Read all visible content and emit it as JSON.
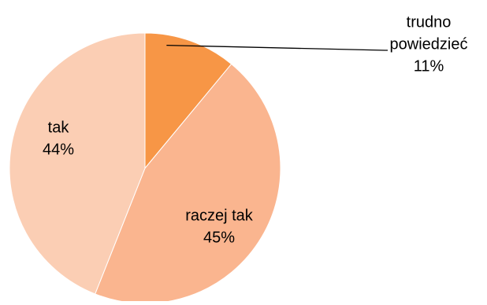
{
  "chart_data": {
    "type": "pie",
    "title": "",
    "slices": [
      {
        "label": "trudno powiedzieć",
        "label_lines": [
          "trudno",
          "powiedzieć"
        ],
        "value": 11,
        "value_text": "11%",
        "color": "#F79646"
      },
      {
        "label": "raczej tak",
        "label_lines": [
          "raczej tak"
        ],
        "value": 45,
        "value_text": "45%",
        "color": "#FAB58F"
      },
      {
        "label": "tak",
        "label_lines": [
          "tak"
        ],
        "value": 44,
        "value_text": "44%",
        "color": "#FBCEB4"
      }
    ],
    "start_angle_deg": 0,
    "direction": "clockwise",
    "legend": "none"
  }
}
